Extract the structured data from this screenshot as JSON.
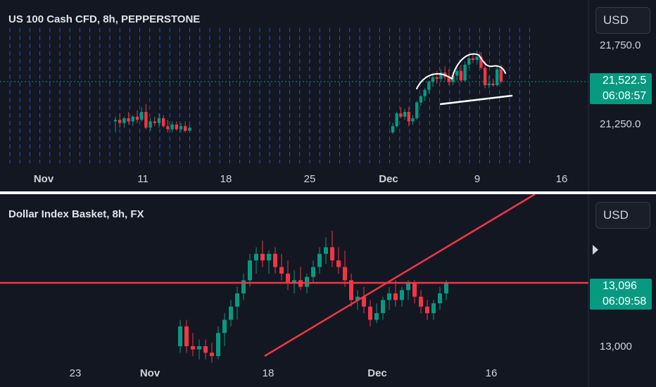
{
  "colors": {
    "background": "#131722",
    "up": "#089981",
    "down": "#f23645",
    "line_red": "#f23645",
    "grid_blue": "#2962ff",
    "price_tag": "#089981",
    "drawing": "#ffffff"
  },
  "top": {
    "title": "US 100 Cash CFD, 8h, PEPPERSTONE",
    "currency": "USD",
    "price_tag": {
      "price": "21,522.5",
      "countdown": "06:08:57"
    },
    "y_labels": [
      "21,750.0",
      "21,250.0"
    ],
    "x_labels": [
      "Nov",
      "11",
      "18",
      "25",
      "Dec",
      "9",
      "16"
    ],
    "bold_x_labels": [
      "Nov",
      "Dec"
    ]
  },
  "bottom": {
    "title": "Dollar Index Basket, 8h, FX",
    "currency": "USD",
    "price_tag": {
      "price": "13,096",
      "countdown": "06:09:58"
    },
    "y_labels": [
      "13,000"
    ],
    "x_labels": [
      "23",
      "Nov",
      "18",
      "Dec",
      "16"
    ],
    "bold_x_labels": [
      "Nov",
      "Dec"
    ]
  },
  "chart_data": [
    {
      "type": "candlestick",
      "title": "US 100 Cash CFD, 8h, PEPPERSTONE",
      "price_scale": "USD",
      "y_ticks": [
        21750,
        21250
      ],
      "x_ticks": [
        "Nov",
        "11",
        "18",
        "25",
        "Dec",
        "9",
        "16"
      ],
      "last_price": 21522.5,
      "vertical_gridlines": "dashed blue",
      "drawings": [
        "freehand head-and-shoulders outline",
        "neckline trendline"
      ],
      "candles": [
        {
          "o": 21270,
          "h": 21300,
          "l": 21200,
          "c": 21280
        },
        {
          "o": 21280,
          "h": 21320,
          "l": 21230,
          "c": 21260
        },
        {
          "o": 21260,
          "h": 21300,
          "l": 21230,
          "c": 21290
        },
        {
          "o": 21290,
          "h": 21330,
          "l": 21250,
          "c": 21270
        },
        {
          "o": 21270,
          "h": 21310,
          "l": 21240,
          "c": 21300
        },
        {
          "o": 21300,
          "h": 21340,
          "l": 21260,
          "c": 21280
        },
        {
          "o": 21280,
          "h": 21360,
          "l": 21270,
          "c": 21330
        },
        {
          "o": 21330,
          "h": 21380,
          "l": 21220,
          "c": 21230
        },
        {
          "o": 21230,
          "h": 21290,
          "l": 21210,
          "c": 21270
        },
        {
          "o": 21270,
          "h": 21300,
          "l": 21240,
          "c": 21260
        },
        {
          "o": 21260,
          "h": 21320,
          "l": 21230,
          "c": 21290
        },
        {
          "o": 21290,
          "h": 21310,
          "l": 21230,
          "c": 21240
        },
        {
          "o": 21240,
          "h": 21280,
          "l": 21200,
          "c": 21220
        },
        {
          "o": 21220,
          "h": 21270,
          "l": 21200,
          "c": 21250
        },
        {
          "o": 21250,
          "h": 21270,
          "l": 21210,
          "c": 21220
        },
        {
          "o": 21220,
          "h": 21260,
          "l": 21200,
          "c": 21240
        },
        {
          "o": 21240,
          "h": 21270,
          "l": 21200,
          "c": 21210
        },
        {
          "o": 21210,
          "h": 21250,
          "l": 21200,
          "c": 21230
        },
        {
          "o": 21200,
          "h": 21260,
          "l": 21190,
          "c": 21240
        },
        {
          "o": 21240,
          "h": 21330,
          "l": 21230,
          "c": 21320
        },
        {
          "o": 21320,
          "h": 21360,
          "l": 21290,
          "c": 21300
        },
        {
          "o": 21300,
          "h": 21350,
          "l": 21280,
          "c": 21330
        },
        {
          "o": 21330,
          "h": 21360,
          "l": 21240,
          "c": 21270
        },
        {
          "o": 21270,
          "h": 21310,
          "l": 21250,
          "c": 21290
        },
        {
          "o": 21290,
          "h": 21400,
          "l": 21280,
          "c": 21390
        },
        {
          "o": 21390,
          "h": 21440,
          "l": 21370,
          "c": 21430
        },
        {
          "o": 21430,
          "h": 21480,
          "l": 21400,
          "c": 21470
        },
        {
          "o": 21470,
          "h": 21530,
          "l": 21450,
          "c": 21520
        },
        {
          "o": 21520,
          "h": 21580,
          "l": 21490,
          "c": 21550
        },
        {
          "o": 21550,
          "h": 21590,
          "l": 21510,
          "c": 21540
        },
        {
          "o": 21540,
          "h": 21600,
          "l": 21520,
          "c": 21580
        },
        {
          "o": 21580,
          "h": 21620,
          "l": 21530,
          "c": 21550
        },
        {
          "o": 21550,
          "h": 21600,
          "l": 21500,
          "c": 21520
        },
        {
          "o": 21520,
          "h": 21580,
          "l": 21500,
          "c": 21560
        },
        {
          "o": 21560,
          "h": 21610,
          "l": 21530,
          "c": 21590
        },
        {
          "o": 21590,
          "h": 21630,
          "l": 21520,
          "c": 21530
        },
        {
          "o": 21530,
          "h": 21650,
          "l": 21520,
          "c": 21630
        },
        {
          "o": 21630,
          "h": 21690,
          "l": 21610,
          "c": 21670
        },
        {
          "o": 21670,
          "h": 21700,
          "l": 21640,
          "c": 21660
        },
        {
          "o": 21660,
          "h": 21720,
          "l": 21630,
          "c": 21680
        },
        {
          "o": 21680,
          "h": 21710,
          "l": 21600,
          "c": 21610
        },
        {
          "o": 21610,
          "h": 21650,
          "l": 21480,
          "c": 21500
        },
        {
          "o": 21500,
          "h": 21560,
          "l": 21480,
          "c": 21510
        },
        {
          "o": 21510,
          "h": 21540,
          "l": 21490,
          "c": 21500
        },
        {
          "o": 21500,
          "h": 21620,
          "l": 21490,
          "c": 21600
        },
        {
          "o": 21600,
          "h": 21630,
          "l": 21510,
          "c": 21522.5
        }
      ]
    },
    {
      "type": "candlestick",
      "title": "Dollar Index Basket, 8h, FX",
      "price_scale": "USD",
      "y_ticks": [
        13000
      ],
      "x_ticks": [
        "23",
        "Nov",
        "18",
        "Dec",
        "16"
      ],
      "last_price": 13096,
      "horizontal_line": 13096,
      "drawings": [
        "rising trendline"
      ],
      "candles": [
        {
          "o": 13000,
          "h": 13040,
          "l": 12990,
          "c": 13030
        },
        {
          "o": 13030,
          "h": 13040,
          "l": 12990,
          "c": 13000
        },
        {
          "o": 13000,
          "h": 13020,
          "l": 12985,
          "c": 12995
        },
        {
          "o": 12995,
          "h": 13010,
          "l": 12980,
          "c": 13000
        },
        {
          "o": 13000,
          "h": 13010,
          "l": 12980,
          "c": 12990
        },
        {
          "o": 12990,
          "h": 13005,
          "l": 12975,
          "c": 12985
        },
        {
          "o": 12985,
          "h": 13030,
          "l": 12980,
          "c": 13020
        },
        {
          "o": 13020,
          "h": 13050,
          "l": 13000,
          "c": 13040
        },
        {
          "o": 13040,
          "h": 13070,
          "l": 13030,
          "c": 13060
        },
        {
          "o": 13060,
          "h": 13090,
          "l": 13040,
          "c": 13080
        },
        {
          "o": 13080,
          "h": 13110,
          "l": 13070,
          "c": 13100
        },
        {
          "o": 13100,
          "h": 13140,
          "l": 13090,
          "c": 13130
        },
        {
          "o": 13130,
          "h": 13150,
          "l": 13110,
          "c": 13140
        },
        {
          "o": 13140,
          "h": 13160,
          "l": 13120,
          "c": 13130
        },
        {
          "o": 13130,
          "h": 13145,
          "l": 13110,
          "c": 13140
        },
        {
          "o": 13140,
          "h": 13150,
          "l": 13110,
          "c": 13120
        },
        {
          "o": 13120,
          "h": 13140,
          "l": 13100,
          "c": 13110
        },
        {
          "o": 13110,
          "h": 13130,
          "l": 13085,
          "c": 13095
        },
        {
          "o": 13095,
          "h": 13115,
          "l": 13080,
          "c": 13100
        },
        {
          "o": 13100,
          "h": 13120,
          "l": 13085,
          "c": 13090
        },
        {
          "o": 13090,
          "h": 13110,
          "l": 13080,
          "c": 13105
        },
        {
          "o": 13105,
          "h": 13130,
          "l": 13095,
          "c": 13120
        },
        {
          "o": 13120,
          "h": 13150,
          "l": 13110,
          "c": 13140
        },
        {
          "o": 13140,
          "h": 13165,
          "l": 13125,
          "c": 13150
        },
        {
          "o": 13150,
          "h": 13175,
          "l": 13120,
          "c": 13130
        },
        {
          "o": 13130,
          "h": 13150,
          "l": 13110,
          "c": 13120
        },
        {
          "o": 13120,
          "h": 13145,
          "l": 13090,
          "c": 13100
        },
        {
          "o": 13100,
          "h": 13110,
          "l": 13060,
          "c": 13070
        },
        {
          "o": 13070,
          "h": 13085,
          "l": 13055,
          "c": 13075
        },
        {
          "o": 13075,
          "h": 13090,
          "l": 13050,
          "c": 13060
        },
        {
          "o": 13060,
          "h": 13070,
          "l": 13030,
          "c": 13040
        },
        {
          "o": 13040,
          "h": 13065,
          "l": 13035,
          "c": 13050
        },
        {
          "o": 13050,
          "h": 13075,
          "l": 13040,
          "c": 13070
        },
        {
          "o": 13070,
          "h": 13090,
          "l": 13055,
          "c": 13080
        },
        {
          "o": 13080,
          "h": 13100,
          "l": 13060,
          "c": 13070
        },
        {
          "o": 13070,
          "h": 13090,
          "l": 13060,
          "c": 13085
        },
        {
          "o": 13085,
          "h": 13100,
          "l": 13070,
          "c": 13095
        },
        {
          "o": 13095,
          "h": 13100,
          "l": 13065,
          "c": 13075
        },
        {
          "o": 13075,
          "h": 13085,
          "l": 13050,
          "c": 13060
        },
        {
          "o": 13060,
          "h": 13070,
          "l": 13040,
          "c": 13050
        },
        {
          "o": 13050,
          "h": 13070,
          "l": 13040,
          "c": 13065
        },
        {
          "o": 13065,
          "h": 13090,
          "l": 13055,
          "c": 13080
        },
        {
          "o": 13080,
          "h": 13100,
          "l": 13070,
          "c": 13096
        }
      ]
    }
  ]
}
